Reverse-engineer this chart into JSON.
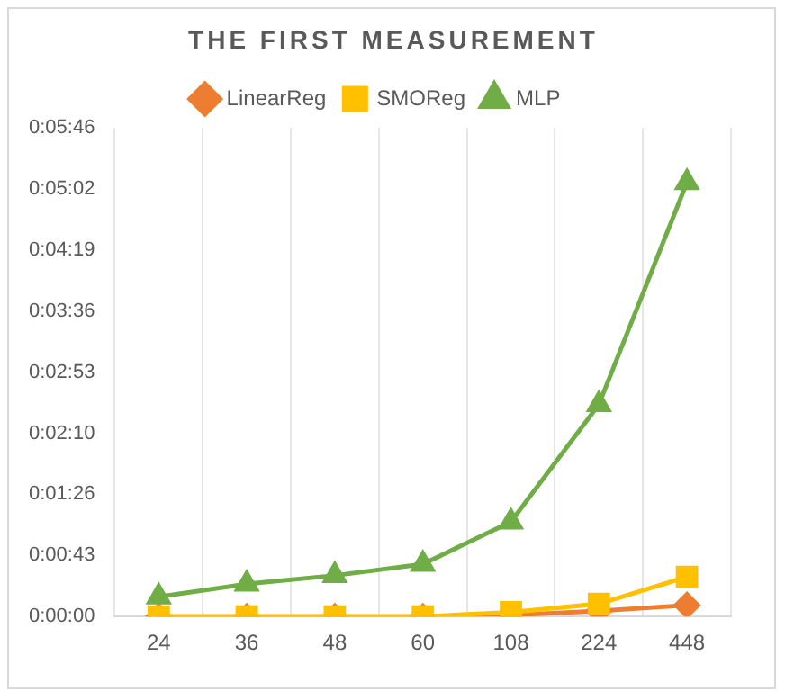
{
  "chart_data": {
    "type": "line",
    "title": "THE FIRST MEASUREMENT",
    "categories": [
      "24",
      "36",
      "48",
      "60",
      "108",
      "224",
      "448"
    ],
    "series": [
      {
        "name": "LinearReg",
        "color": "#ed7d31",
        "marker": "diamond",
        "values": [
          0,
          0,
          0,
          0,
          1,
          4,
          8
        ]
      },
      {
        "name": "SMOReg",
        "color": "#ffc000",
        "marker": "square",
        "values": [
          0,
          0,
          0,
          0,
          3,
          9,
          28
        ]
      },
      {
        "name": "MLP",
        "color": "#70ad47",
        "marker": "triangle",
        "values": [
          14,
          23,
          29,
          37,
          67,
          150,
          307
        ]
      }
    ],
    "ylim": [
      0,
      345.6
    ],
    "yticks": [
      {
        "value": 0,
        "label": "0:00:00"
      },
      {
        "value": 43.2,
        "label": "0:00:43"
      },
      {
        "value": 86.4,
        "label": "0:01:26"
      },
      {
        "value": 129.6,
        "label": "0:02:10"
      },
      {
        "value": 172.8,
        "label": "0:02:53"
      },
      {
        "value": 216,
        "label": "0:03:36"
      },
      {
        "value": 259.2,
        "label": "0:04:19"
      },
      {
        "value": 302.4,
        "label": "0:05:02"
      },
      {
        "value": 345.6,
        "label": "0:05:46"
      }
    ],
    "grid": "x",
    "legend": "top",
    "line_style": "solid"
  }
}
